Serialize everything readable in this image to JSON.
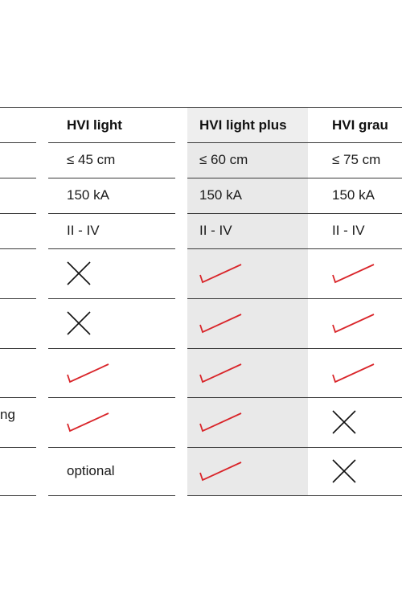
{
  "table": {
    "columns": [
      {
        "label": "HVI light"
      },
      {
        "label": "HVI light plus"
      },
      {
        "label": "HVI grau"
      }
    ],
    "row_label_fragment": "ng",
    "rows": [
      {
        "cells": [
          {
            "type": "text",
            "value": "≤ 45 cm"
          },
          {
            "type": "text",
            "value": "≤ 60 cm"
          },
          {
            "type": "text",
            "value": "≤ 75 cm"
          }
        ]
      },
      {
        "cells": [
          {
            "type": "text",
            "value": "150 kA"
          },
          {
            "type": "text",
            "value": "150 kA"
          },
          {
            "type": "text",
            "value": "150 kA"
          }
        ]
      },
      {
        "cells": [
          {
            "type": "text",
            "value": "II - IV"
          },
          {
            "type": "text",
            "value": "II - IV"
          },
          {
            "type": "text",
            "value": "II - IV"
          }
        ]
      },
      {
        "cells": [
          {
            "type": "icon",
            "icon": "cross-icon"
          },
          {
            "type": "icon",
            "icon": "check-icon"
          },
          {
            "type": "icon",
            "icon": "check-icon"
          }
        ]
      },
      {
        "cells": [
          {
            "type": "icon",
            "icon": "cross-icon"
          },
          {
            "type": "icon",
            "icon": "check-icon"
          },
          {
            "type": "icon",
            "icon": "check-icon"
          }
        ]
      },
      {
        "cells": [
          {
            "type": "icon",
            "icon": "check-icon"
          },
          {
            "type": "icon",
            "icon": "check-icon"
          },
          {
            "type": "icon",
            "icon": "check-icon"
          }
        ]
      },
      {
        "cells": [
          {
            "type": "icon",
            "icon": "check-icon"
          },
          {
            "type": "icon",
            "icon": "check-icon"
          },
          {
            "type": "icon",
            "icon": "cross-icon"
          }
        ]
      },
      {
        "cells": [
          {
            "type": "text",
            "value": "optional"
          },
          {
            "type": "icon",
            "icon": "check-icon"
          },
          {
            "type": "icon",
            "icon": "cross-icon"
          }
        ]
      }
    ]
  },
  "colors": {
    "check": "#d9252a",
    "cross": "#111111",
    "highlight_column": "#e9e9e9",
    "rule": "#3a3a3a"
  }
}
